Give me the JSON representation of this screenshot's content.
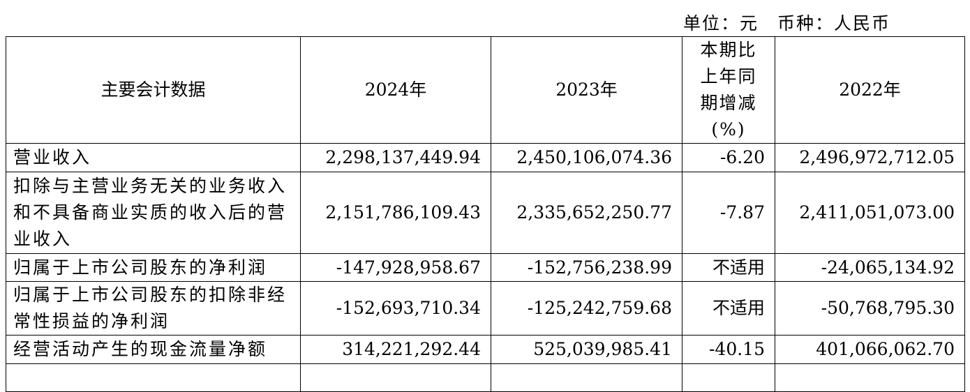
{
  "unit_note": "单位：元　币种：人民币",
  "table": {
    "header": [
      "主要会计数据",
      "2024年",
      "2023年",
      "本期比上年同期增减(%)",
      "2022年"
    ],
    "rows": [
      [
        "营业收入",
        "2,298,137,449.94",
        "2,450,106,074.36",
        "-6.20",
        "2,496,972,712.05"
      ],
      [
        "扣除与主营业务无关的业务收入和不具备商业实质的收入后的营业收入",
        "2,151,786,109.43",
        "2,335,652,250.77",
        "-7.87",
        "2,411,051,073.00"
      ],
      [
        "归属于上市公司股东的净利润",
        "-147,928,958.67",
        "-152,756,238.99",
        "不适用",
        "-24,065,134.92"
      ],
      [
        "归属于上市公司股东的扣除非经常性损益的净利润",
        "-152,693,710.34",
        "-125,242,759.68",
        "不适用",
        "-50,768,795.30"
      ],
      [
        "经营活动产生的现金流量净额",
        "314,221,292.44",
        "525,039,985.41",
        "-40.15",
        "401,066,062.70"
      ]
    ]
  }
}
